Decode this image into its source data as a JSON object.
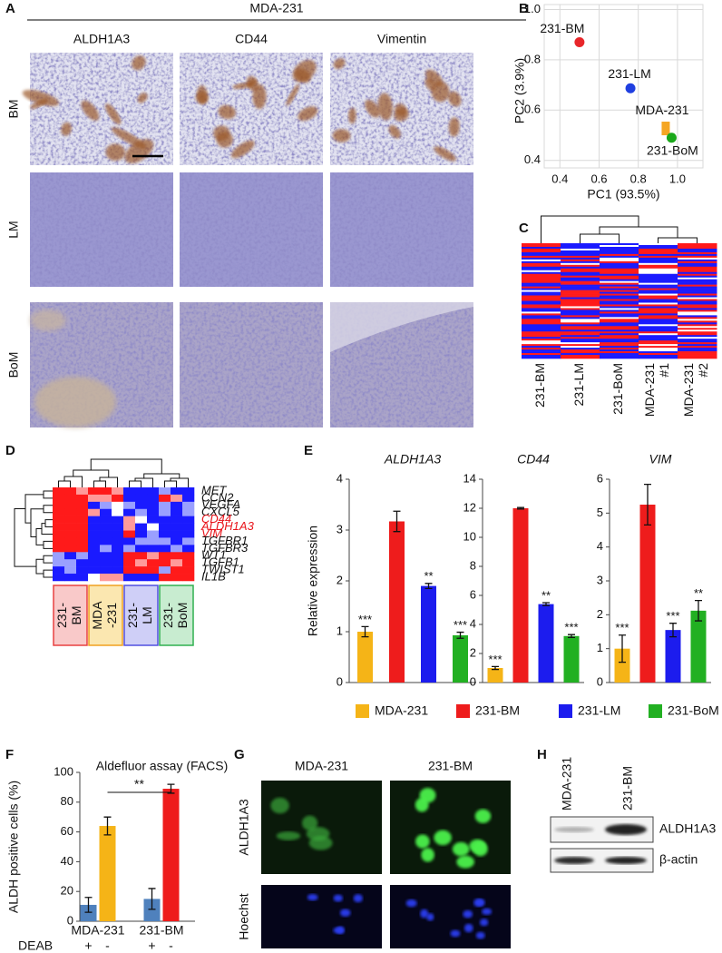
{
  "figure": {
    "letters": [
      "A",
      "B",
      "C",
      "D",
      "E",
      "F",
      "G",
      "H"
    ],
    "panel_a": {
      "title": "MDA-231",
      "columns": [
        "ALDH1A3",
        "CD44",
        "Vimentin"
      ],
      "rows": [
        "BM",
        "LM",
        "BoM"
      ]
    },
    "panel_c": {
      "samples": [
        [
          "231-BM"
        ],
        [
          "231-LM"
        ],
        [
          "231-BoM"
        ],
        [
          "MDA-231",
          "#1"
        ],
        [
          "MDA-231",
          "#2"
        ]
      ]
    },
    "panel_d": {
      "genes": [
        {
          "label": "MET",
          "color": "#111111"
        },
        {
          "label": "CCN2",
          "color": "#111111"
        },
        {
          "label": "VEGFA",
          "color": "#111111"
        },
        {
          "label": "CXCL5",
          "color": "#111111"
        },
        {
          "label": "CD44",
          "color": "#e8141b"
        },
        {
          "label": "ALDH1A3",
          "color": "#e8141b"
        },
        {
          "label": "VIM",
          "color": "#e8141b"
        },
        {
          "label": "TGFBR1",
          "color": "#111111"
        },
        {
          "label": "TGFBR3",
          "color": "#111111"
        },
        {
          "label": "WT1",
          "color": "#111111"
        },
        {
          "label": "TGFB1",
          "color": "#111111"
        },
        {
          "label": "TWIST1",
          "color": "#111111"
        },
        {
          "label": "IL1B",
          "color": "#111111"
        }
      ],
      "groups": [
        {
          "lines": [
            "231-",
            "BM"
          ],
          "fill": "#f9c9c9",
          "border": "#e84040"
        },
        {
          "lines": [
            "MDA",
            "-231"
          ],
          "fill": "#fbe7b0",
          "border": "#f0a020"
        },
        {
          "lines": [
            "231-",
            "LM"
          ],
          "fill": "#cfcff7",
          "border": "#5050e0"
        },
        {
          "lines": [
            "231-",
            "BoM"
          ],
          "fill": "#c8ecd0",
          "border": "#30b050"
        }
      ]
    },
    "panel_g": {
      "columns": [
        "MDA-231",
        "231-BM"
      ],
      "rows": [
        "ALDH1A3",
        "Hoechst"
      ]
    },
    "panel_h": {
      "columns": [
        "MDA-231",
        "231-BM"
      ],
      "rows": [
        "ALDH1A3",
        "β-actin"
      ]
    }
  },
  "chart_data": [
    {
      "type": "scatter",
      "xlabel": "PC1 (93.5%)",
      "ylabel": "PC2 (3.9%)",
      "xlim": [
        0.32,
        1.13
      ],
      "ylim": [
        0.37,
        1.02
      ],
      "xticks": [
        0.4,
        0.6,
        0.8,
        {
          "value": 1,
          "label": "1.0"
        }
      ],
      "yticks": [
        0.4,
        0.6,
        0.8,
        {
          "value": 1,
          "label": "1.0"
        }
      ],
      "grid": true,
      "series": [
        {
          "name": "231-BM",
          "color": "#e8262a",
          "marker": "circle",
          "x": [
            0.5
          ],
          "y": [
            0.87
          ]
        },
        {
          "name": "231-LM",
          "color": "#1f3fe0",
          "marker": "circle",
          "x": [
            0.76
          ],
          "y": [
            0.687
          ]
        },
        {
          "name": "MDA-231",
          "color": "#f5a623",
          "marker": "square",
          "x": [
            0.94
          ],
          "y": [
            0.527
          ]
        },
        {
          "name": "231-BoM",
          "color": "#1aa81a",
          "marker": "circle",
          "x": [
            0.97
          ],
          "y": [
            0.49
          ]
        }
      ]
    },
    {
      "type": "bar",
      "title": "ALDH1A3",
      "ylabel": "Relative expression",
      "categories": [
        "MDA-231",
        "231-BM",
        "231-LM",
        "231-BoM"
      ],
      "colors": [
        "#f5b417",
        "#ee1c1c",
        "#1c1cee",
        "#22b022"
      ],
      "values": [
        1.0,
        3.17,
        1.9,
        0.93
      ],
      "errors": [
        0.1,
        0.2,
        0.05,
        0.06
      ],
      "significance": [
        "***",
        null,
        "**",
        "***"
      ],
      "ylim": [
        0,
        4
      ],
      "yticks": [
        0,
        1,
        2,
        3,
        4
      ],
      "legend": "bottom"
    },
    {
      "type": "bar",
      "title": "CD44",
      "colors": [
        "#f5b417",
        "#ee1c1c",
        "#1c1cee",
        "#22b022"
      ],
      "values": [
        1.0,
        12.0,
        5.4,
        3.2
      ],
      "errors": [
        0.1,
        0.05,
        0.1,
        0.1
      ],
      "significance": [
        "***",
        null,
        "**",
        "***"
      ],
      "ylim": [
        0,
        14
      ],
      "yticks": [
        0,
        2,
        4,
        6,
        8,
        10,
        12,
        14
      ]
    },
    {
      "type": "bar",
      "title": "VIM",
      "colors": [
        "#f5b417",
        "#ee1c1c",
        "#1c1cee",
        "#22b022"
      ],
      "values": [
        1.0,
        5.25,
        1.55,
        2.12
      ],
      "errors": [
        0.4,
        0.6,
        0.2,
        0.3
      ],
      "significance": [
        "***",
        null,
        "***",
        "**"
      ],
      "ylim": [
        0,
        6
      ],
      "yticks": [
        0,
        1,
        2,
        3,
        4,
        5,
        6
      ]
    },
    {
      "type": "bar",
      "title": "Aldefluor assay (FACS)",
      "ylabel": "ALDH positive cells (%)",
      "groups": [
        "MDA-231",
        "231-BM"
      ],
      "values": [
        11,
        64,
        15,
        89
      ],
      "errors": [
        5,
        6,
        7,
        3
      ],
      "colors": [
        "#4f81bd",
        "#f5b417",
        "#4f81bd",
        "#ee1c1c"
      ],
      "treatment_label": "DEAB",
      "treatment": [
        "+",
        "-",
        "+",
        "-"
      ],
      "significance": "**",
      "ylim": [
        0,
        100
      ],
      "yticks": [
        0,
        20,
        40,
        60,
        80,
        100
      ]
    }
  ]
}
